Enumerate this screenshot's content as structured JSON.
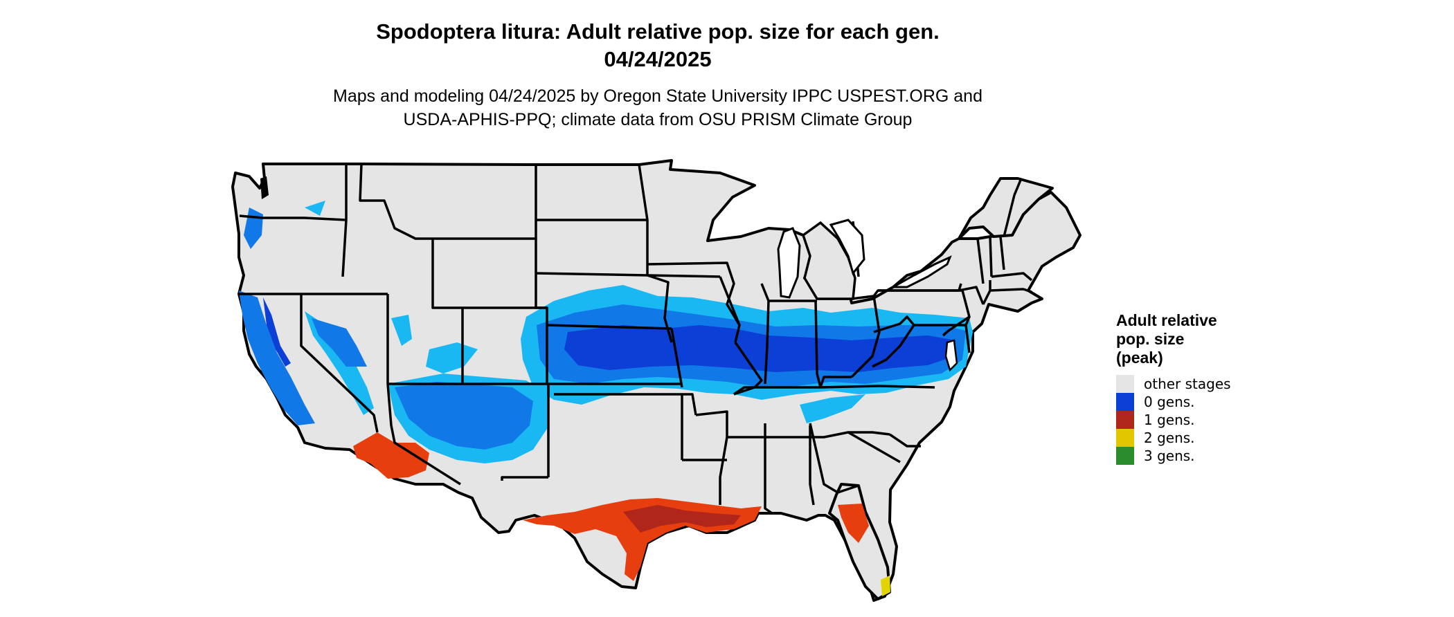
{
  "title_line1": "Spodoptera litura: Adult relative pop. size for each gen.",
  "title_line2": "04/24/2025",
  "subtitle_line1": "Maps and modeling 04/24/2025 by Oregon State University IPPC USPEST.ORG and",
  "subtitle_line2": "USDA-APHIS-PPQ; climate data from OSU PRISM Climate Group",
  "legend": {
    "title_line1": "Adult relative",
    "title_line2": "pop. size",
    "title_line3": "(peak)",
    "items": [
      {
        "label": "other stages",
        "color": "#e5e5e5"
      },
      {
        "label": "0 gens.",
        "color": "#0b3fd6"
      },
      {
        "label": "1 gens.",
        "color": "#b1261a"
      },
      {
        "label": "2 gens.",
        "color": "#e2c600"
      },
      {
        "label": "3 gens.",
        "color": "#2a8c2a"
      }
    ]
  },
  "colors": {
    "land": "#e5e5e5",
    "border": "#000000",
    "blue_light": "#1ab8f2",
    "blue_mid": "#1178e8",
    "blue_dark": "#0b3fd6",
    "red": "#e63e0e",
    "red_dark": "#b1261a",
    "yellow": "#e2d400"
  }
}
